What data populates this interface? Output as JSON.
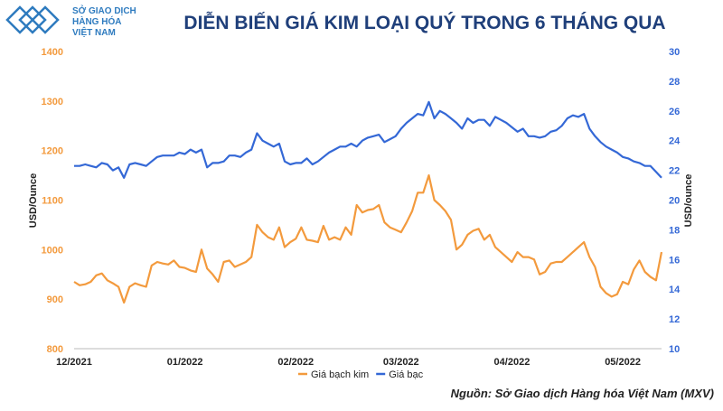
{
  "logo": {
    "lines": [
      "SỞ GIAO DỊCH",
      "HÀNG HÓA",
      "VIỆT NAM"
    ]
  },
  "source": "Nguồn: Sở Giao dịch Hàng hóa Việt Nam (MXV)",
  "chart_data": {
    "type": "line",
    "title": "DIỄN BIẾN GIÁ KIM LOẠI QUÝ TRONG 6 THÁNG QUA",
    "y_label": "USD/Ounce",
    "y2_label": "USD/ounce",
    "categories": [
      "12/2021",
      null,
      null,
      null,
      null,
      null,
      null,
      null,
      null,
      null,
      null,
      null,
      null,
      null,
      null,
      null,
      null,
      null,
      null,
      null,
      "01/2022",
      null,
      null,
      null,
      null,
      null,
      null,
      null,
      null,
      null,
      null,
      null,
      null,
      null,
      null,
      null,
      null,
      null,
      null,
      null,
      "02/2022",
      null,
      null,
      null,
      null,
      null,
      null,
      null,
      null,
      null,
      null,
      null,
      null,
      null,
      null,
      null,
      null,
      null,
      null,
      "03/2022",
      null,
      null,
      null,
      null,
      null,
      null,
      null,
      null,
      null,
      null,
      null,
      null,
      null,
      null,
      null,
      null,
      null,
      null,
      null,
      "04/2022",
      null,
      null,
      null,
      null,
      null,
      null,
      null,
      null,
      null,
      null,
      null,
      null,
      null,
      null,
      null,
      null,
      null,
      null,
      null,
      "05/2022",
      null,
      null,
      null,
      null,
      null,
      null,
      null
    ],
    "ylim": [
      800,
      1400
    ],
    "yticks": [
      800,
      900,
      1000,
      1100,
      1200,
      1300,
      1400
    ],
    "y2lim": [
      10,
      30
    ],
    "y2ticks": [
      10,
      12,
      14,
      16,
      18,
      20,
      22,
      24,
      26,
      28,
      30
    ],
    "legend": "bottom",
    "series": [
      {
        "name": "Giá bạch kim",
        "color": "#f39a3d",
        "values": [
          935,
          928,
          930,
          935,
          948,
          952,
          938,
          932,
          925,
          893,
          925,
          932,
          928,
          925,
          968,
          975,
          972,
          970,
          978,
          965,
          963,
          958,
          955,
          1000,
          962,
          950,
          935,
          975,
          978,
          965,
          970,
          975,
          985,
          1050,
          1035,
          1025,
          1020,
          1045,
          1005,
          1015,
          1022,
          1045,
          1020,
          1018,
          1015,
          1048,
          1020,
          1025,
          1020,
          1045,
          1030,
          1090,
          1075,
          1080,
          1082,
          1090,
          1055,
          1045,
          1040,
          1035,
          1055,
          1078,
          1115,
          1115,
          1150,
          1100,
          1090,
          1078,
          1060,
          1000,
          1010,
          1030,
          1038,
          1042,
          1020,
          1030,
          1005,
          995,
          985,
          975,
          995,
          985,
          985,
          980,
          950,
          955,
          972,
          975,
          975,
          985,
          995,
          1005,
          1015,
          985,
          965,
          925,
          912,
          905,
          910,
          935,
          930,
          960,
          978,
          955,
          945,
          938,
          995
        ]
      },
      {
        "name": "Giá bạc",
        "color": "#3468d6",
        "axis": "y2",
        "values": [
          22.3,
          22.3,
          22.4,
          22.3,
          22.2,
          22.5,
          22.4,
          22.0,
          22.2,
          21.5,
          22.4,
          22.5,
          22.4,
          22.3,
          22.6,
          22.9,
          23.0,
          23.0,
          23.0,
          23.2,
          23.1,
          23.4,
          23.2,
          23.4,
          22.2,
          22.5,
          22.5,
          22.6,
          23.0,
          23.0,
          22.9,
          23.2,
          23.4,
          24.5,
          24.0,
          23.8,
          23.6,
          23.8,
          22.6,
          22.4,
          22.5,
          22.5,
          22.8,
          22.4,
          22.6,
          22.9,
          23.2,
          23.4,
          23.6,
          23.6,
          23.8,
          23.6,
          24.0,
          24.2,
          24.3,
          24.4,
          23.9,
          24.1,
          24.3,
          24.8,
          25.2,
          25.5,
          25.8,
          25.7,
          26.6,
          25.5,
          26.0,
          25.8,
          25.5,
          25.2,
          24.8,
          25.5,
          25.2,
          25.4,
          25.4,
          25.0,
          25.6,
          25.4,
          25.2,
          24.9,
          24.6,
          24.8,
          24.3,
          24.3,
          24.2,
          24.3,
          24.6,
          24.7,
          25.0,
          25.5,
          25.7,
          25.6,
          25.8,
          24.8,
          24.3,
          23.9,
          23.6,
          23.4,
          23.2,
          22.9,
          22.8,
          22.6,
          22.5,
          22.3,
          22.3,
          21.9,
          21.5
        ]
      }
    ]
  }
}
